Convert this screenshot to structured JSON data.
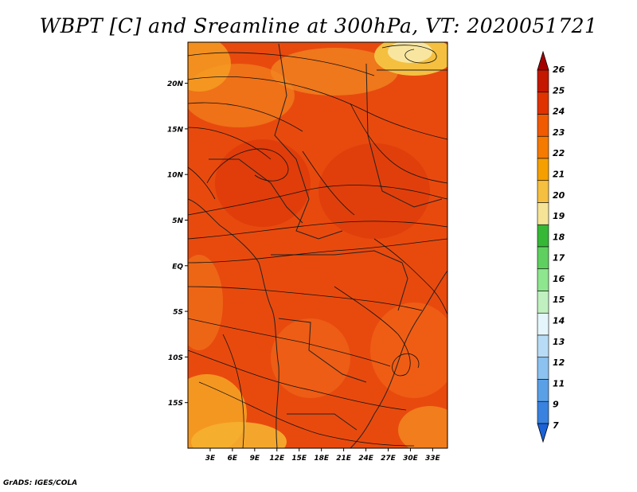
{
  "title": "WBPT [C] and Sreamline at 300hPa, VT: 2020051721",
  "credit": "GrADS: IGES/COLA",
  "map": {
    "lat_labels": [
      "20N",
      "15N",
      "10N",
      "5N",
      "EQ",
      "5S",
      "10S",
      "15S"
    ],
    "lon_labels": [
      "3E",
      "6E",
      "9E",
      "12E",
      "15E",
      "18E",
      "21E",
      "24E",
      "27E",
      "30E",
      "33E"
    ],
    "lat_values": [
      20,
      15,
      10,
      5,
      0,
      -5,
      -10,
      -15
    ],
    "lon_values": [
      3,
      6,
      9,
      12,
      15,
      18,
      21,
      24,
      27,
      30,
      33
    ],
    "lon_range": [
      0,
      35
    ],
    "lat_range": [
      -20,
      24.5
    ],
    "field_range_C": [
      19,
      24
    ]
  },
  "colorbar": {
    "levels": [
      "26",
      "25",
      "24",
      "23",
      "22",
      "21",
      "20",
      "19",
      "18",
      "17",
      "16",
      "15",
      "14",
      "13",
      "12",
      "11",
      "9",
      "7"
    ],
    "colors": [
      "#a50000",
      "#c41800",
      "#e03200",
      "#f05a00",
      "#f57a00",
      "#f5a000",
      "#f5c040",
      "#f5e496",
      "#36b836",
      "#5fd05f",
      "#8ee68e",
      "#c0f0c0",
      "#e4f6fb",
      "#b8dcf5",
      "#8cc2ef",
      "#5aa0e6",
      "#3a82df",
      "#1a62d6"
    ]
  }
}
